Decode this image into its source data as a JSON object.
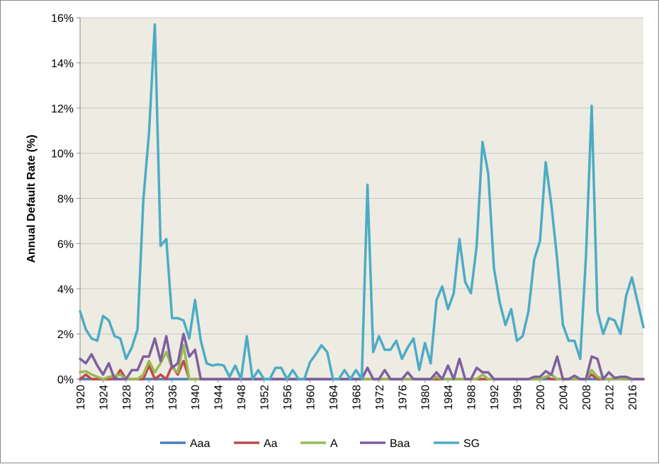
{
  "chart_data": {
    "type": "line",
    "title": "",
    "xlabel": "",
    "ylabel": "Annual Default Rate (%)",
    "ylim": [
      0,
      16
    ],
    "y_ticks": [
      "0%",
      "2%",
      "4%",
      "6%",
      "8%",
      "10%",
      "12%",
      "14%",
      "16%"
    ],
    "x_range": [
      1920,
      2018
    ],
    "x_tick_years": [
      1920,
      1924,
      1928,
      1932,
      1936,
      1940,
      1944,
      1948,
      1952,
      1956,
      1960,
      1964,
      1968,
      1972,
      1976,
      1980,
      1984,
      1988,
      1992,
      1996,
      2000,
      2004,
      2008,
      2012,
      2016
    ],
    "plot_background": "#eeebe2",
    "grid": true,
    "legend_position": "bottom",
    "series": [
      {
        "name": "Aaa",
        "color": "#4a7ebb",
        "points": [
          [
            1920,
            0
          ],
          [
            2018,
            0
          ]
        ]
      },
      {
        "name": "Aa",
        "color": "#be4b48",
        "points": [
          [
            1920,
            0
          ],
          [
            1921,
            0.2
          ],
          [
            1922,
            0
          ],
          [
            1926,
            0
          ],
          [
            1927,
            0.4
          ],
          [
            1928,
            0
          ],
          [
            1929,
            0
          ],
          [
            1930,
            0
          ],
          [
            1931,
            0
          ],
          [
            1932,
            0.6
          ],
          [
            1933,
            0
          ],
          [
            1934,
            0.2
          ],
          [
            1935,
            0
          ],
          [
            1936,
            0.6
          ],
          [
            1937,
            0.2
          ],
          [
            1938,
            0.8
          ],
          [
            1939,
            0
          ],
          [
            2000,
            0
          ],
          [
            2001,
            0.1
          ],
          [
            2002,
            0
          ],
          [
            2008,
            0
          ],
          [
            2009,
            0.2
          ],
          [
            2010,
            0
          ],
          [
            2013,
            0
          ],
          [
            2014,
            0.1
          ],
          [
            2015,
            0
          ],
          [
            2018,
            0
          ]
        ]
      },
      {
        "name": "A",
        "color": "#98b954",
        "points": [
          [
            1920,
            0.3
          ],
          [
            1921,
            0.35
          ],
          [
            1922,
            0.2
          ],
          [
            1923,
            0.1
          ],
          [
            1924,
            0
          ],
          [
            1925,
            0.1
          ],
          [
            1926,
            0.15
          ],
          [
            1927,
            0.2
          ],
          [
            1928,
            0
          ],
          [
            1929,
            0
          ],
          [
            1930,
            0
          ],
          [
            1931,
            0.2
          ],
          [
            1932,
            0.8
          ],
          [
            1933,
            0.3
          ],
          [
            1934,
            0.7
          ],
          [
            1935,
            1.2
          ],
          [
            1936,
            0.5
          ],
          [
            1937,
            0.3
          ],
          [
            1938,
            1.5
          ],
          [
            1939,
            0
          ],
          [
            1940,
            0
          ],
          [
            1981,
            0
          ],
          [
            1982,
            0.1
          ],
          [
            1983,
            0
          ],
          [
            1989,
            0
          ],
          [
            1990,
            0.2
          ],
          [
            1991,
            0
          ],
          [
            1999,
            0
          ],
          [
            2000,
            0
          ],
          [
            2001,
            0.1
          ],
          [
            2002,
            0.2
          ],
          [
            2003,
            0
          ],
          [
            2008,
            0
          ],
          [
            2009,
            0.4
          ],
          [
            2010,
            0.1
          ],
          [
            2011,
            0
          ],
          [
            2018,
            0
          ]
        ]
      },
      {
        "name": "Baa",
        "color": "#7d5fa0",
        "points": [
          [
            1920,
            0.9
          ],
          [
            1921,
            0.7
          ],
          [
            1922,
            1.1
          ],
          [
            1923,
            0.6
          ],
          [
            1924,
            0.2
          ],
          [
            1925,
            0.7
          ],
          [
            1926,
            0
          ],
          [
            1927,
            0
          ],
          [
            1928,
            0
          ],
          [
            1929,
            0.4
          ],
          [
            1930,
            0.4
          ],
          [
            1931,
            1.0
          ],
          [
            1932,
            1.0
          ],
          [
            1933,
            1.8
          ],
          [
            1934,
            0.8
          ],
          [
            1935,
            1.9
          ],
          [
            1936,
            0.5
          ],
          [
            1937,
            0.7
          ],
          [
            1938,
            2.0
          ],
          [
            1939,
            1.0
          ],
          [
            1940,
            1.3
          ],
          [
            1941,
            0
          ],
          [
            1969,
            0
          ],
          [
            1970,
            0.5
          ],
          [
            1971,
            0
          ],
          [
            1972,
            0
          ],
          [
            1973,
            0.4
          ],
          [
            1974,
            0
          ],
          [
            1976,
            0
          ],
          [
            1977,
            0.3
          ],
          [
            1978,
            0
          ],
          [
            1981,
            0
          ],
          [
            1982,
            0.3
          ],
          [
            1983,
            0
          ],
          [
            1984,
            0.6
          ],
          [
            1985,
            0
          ],
          [
            1986,
            0.9
          ],
          [
            1987,
            0
          ],
          [
            1988,
            0
          ],
          [
            1989,
            0.5
          ],
          [
            1990,
            0.3
          ],
          [
            1991,
            0.3
          ],
          [
            1992,
            0
          ],
          [
            1998,
            0
          ],
          [
            1999,
            0.1
          ],
          [
            2000,
            0.1
          ],
          [
            2001,
            0.35
          ],
          [
            2002,
            0.2
          ],
          [
            2003,
            1.0
          ],
          [
            2004,
            0
          ],
          [
            2005,
            0
          ],
          [
            2006,
            0.15
          ],
          [
            2007,
            0
          ],
          [
            2008,
            0
          ],
          [
            2009,
            1.0
          ],
          [
            2010,
            0.9
          ],
          [
            2011,
            0
          ],
          [
            2012,
            0.3
          ],
          [
            2013,
            0.05
          ],
          [
            2014,
            0.1
          ],
          [
            2015,
            0.1
          ],
          [
            2016,
            0
          ],
          [
            2018,
            0
          ]
        ]
      },
      {
        "name": "SG",
        "color": "#4bacc6",
        "points": [
          [
            1920,
            3.0
          ],
          [
            1921,
            2.2
          ],
          [
            1922,
            1.8
          ],
          [
            1923,
            1.7
          ],
          [
            1924,
            2.8
          ],
          [
            1925,
            2.6
          ],
          [
            1926,
            1.9
          ],
          [
            1927,
            1.8
          ],
          [
            1928,
            0.9
          ],
          [
            1929,
            1.4
          ],
          [
            1930,
            2.2
          ],
          [
            1931,
            7.9
          ],
          [
            1932,
            10.9
          ],
          [
            1933,
            15.7
          ],
          [
            1934,
            5.9
          ],
          [
            1935,
            6.2
          ],
          [
            1936,
            2.7
          ],
          [
            1937,
            2.7
          ],
          [
            1938,
            2.6
          ],
          [
            1939,
            1.8
          ],
          [
            1940,
            3.5
          ],
          [
            1941,
            1.7
          ],
          [
            1942,
            0.7
          ],
          [
            1943,
            0.6
          ],
          [
            1944,
            0.65
          ],
          [
            1945,
            0.6
          ],
          [
            1946,
            0.1
          ],
          [
            1947,
            0.6
          ],
          [
            1948,
            0
          ],
          [
            1949,
            1.9
          ],
          [
            1950,
            0
          ],
          [
            1951,
            0.4
          ],
          [
            1952,
            0
          ],
          [
            1953,
            0
          ],
          [
            1954,
            0.5
          ],
          [
            1955,
            0.5
          ],
          [
            1956,
            0
          ],
          [
            1957,
            0.4
          ],
          [
            1958,
            0
          ],
          [
            1959,
            0
          ],
          [
            1960,
            0.75
          ],
          [
            1961,
            1.1
          ],
          [
            1962,
            1.5
          ],
          [
            1963,
            1.2
          ],
          [
            1964,
            0
          ],
          [
            1965,
            0
          ],
          [
            1966,
            0.4
          ],
          [
            1967,
            0
          ],
          [
            1968,
            0.4
          ],
          [
            1969,
            0
          ],
          [
            1970,
            8.6
          ],
          [
            1971,
            1.2
          ],
          [
            1972,
            1.9
          ],
          [
            1973,
            1.3
          ],
          [
            1974,
            1.3
          ],
          [
            1975,
            1.7
          ],
          [
            1976,
            0.9
          ],
          [
            1977,
            1.4
          ],
          [
            1978,
            1.8
          ],
          [
            1979,
            0.4
          ],
          [
            1980,
            1.6
          ],
          [
            1981,
            0.7
          ],
          [
            1982,
            3.5
          ],
          [
            1983,
            4.1
          ],
          [
            1984,
            3.1
          ],
          [
            1985,
            3.8
          ],
          [
            1986,
            6.2
          ],
          [
            1987,
            4.3
          ],
          [
            1988,
            3.8
          ],
          [
            1989,
            5.9
          ],
          [
            1990,
            10.5
          ],
          [
            1991,
            9.1
          ],
          [
            1992,
            4.9
          ],
          [
            1993,
            3.4
          ],
          [
            1994,
            2.4
          ],
          [
            1995,
            3.1
          ],
          [
            1996,
            1.7
          ],
          [
            1997,
            1.9
          ],
          [
            1998,
            3.0
          ],
          [
            1999,
            5.3
          ],
          [
            2000,
            6.1
          ],
          [
            2001,
            9.6
          ],
          [
            2002,
            7.7
          ],
          [
            2003,
            5.3
          ],
          [
            2004,
            2.4
          ],
          [
            2005,
            1.7
          ],
          [
            2006,
            1.7
          ],
          [
            2007,
            0.9
          ],
          [
            2008,
            5.4
          ],
          [
            2009,
            12.1
          ],
          [
            2010,
            3.0
          ],
          [
            2011,
            2.0
          ],
          [
            2012,
            2.7
          ],
          [
            2013,
            2.6
          ],
          [
            2014,
            2.0
          ],
          [
            2015,
            3.7
          ],
          [
            2016,
            4.5
          ],
          [
            2017,
            3.4
          ],
          [
            2018,
            2.3
          ]
        ]
      }
    ]
  }
}
